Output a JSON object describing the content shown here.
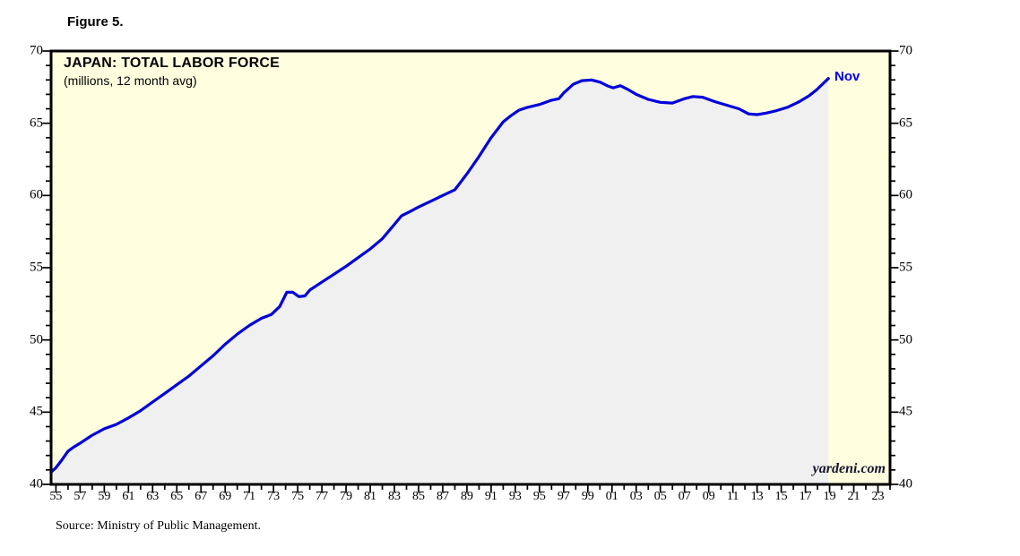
{
  "figure_label": "Figure 5.",
  "chart": {
    "title": "JAPAN: TOTAL LABOR FORCE",
    "subtitle": "(millions, 12 month avg)",
    "end_label": "Nov",
    "watermark": "yardeni.com"
  },
  "source_note": "Source: Ministry of Public Management.",
  "colors": {
    "plot_background": "#ffffe0",
    "area_fill": "#f0f0f0",
    "line": "#0000dd",
    "end_label_blue": "#0000ee",
    "axis": "#000000"
  },
  "chart_data": {
    "type": "area",
    "title": "JAPAN: TOTAL LABOR FORCE",
    "subtitle": "(millions, 12 month avg)",
    "xlabel": "",
    "ylabel": "millions",
    "grid": false,
    "legend_position": "none",
    "xlim": [
      1954.6,
      2024
    ],
    "ylim": [
      40,
      70
    ],
    "y_major_ticks": [
      40,
      45,
      50,
      55,
      60,
      65,
      70
    ],
    "y_minor_tick_step": 1,
    "y_tick_labels": [
      "40",
      "45",
      "50",
      "55",
      "60",
      "65",
      "70"
    ],
    "x_major_tick_start_year": 1955,
    "x_major_tick_step_years": 2,
    "x_tick_labels": [
      "55",
      "57",
      "59",
      "61",
      "63",
      "65",
      "67",
      "69",
      "71",
      "73",
      "75",
      "77",
      "79",
      "81",
      "83",
      "85",
      "87",
      "89",
      "91",
      "93",
      "95",
      "97",
      "99",
      "01",
      "03",
      "05",
      "07",
      "09",
      "11",
      "13",
      "15",
      "17",
      "19",
      "21",
      "23"
    ],
    "series": [
      {
        "name": "Japan total labor force, millions (12-month average)",
        "end_point_label": "Nov",
        "points": [
          [
            1954.6,
            40.85
          ],
          [
            1955,
            41.15
          ],
          [
            1955.5,
            41.7
          ],
          [
            1956,
            42.3
          ],
          [
            1956.5,
            42.6
          ],
          [
            1957,
            42.85
          ],
          [
            1958,
            43.4
          ],
          [
            1959,
            43.85
          ],
          [
            1960,
            44.15
          ],
          [
            1961,
            44.6
          ],
          [
            1962,
            45.1
          ],
          [
            1963,
            45.7
          ],
          [
            1964,
            46.3
          ],
          [
            1965,
            46.9
          ],
          [
            1966,
            47.5
          ],
          [
            1967,
            48.2
          ],
          [
            1968,
            48.9
          ],
          [
            1969,
            49.7
          ],
          [
            1970,
            50.4
          ],
          [
            1971,
            51.0
          ],
          [
            1972,
            51.5
          ],
          [
            1972.8,
            51.75
          ],
          [
            1973.5,
            52.3
          ],
          [
            1974.1,
            53.3
          ],
          [
            1974.6,
            53.3
          ],
          [
            1975.1,
            53.0
          ],
          [
            1975.6,
            53.05
          ],
          [
            1976,
            53.45
          ],
          [
            1977,
            54.0
          ],
          [
            1978,
            54.55
          ],
          [
            1979,
            55.1
          ],
          [
            1980,
            55.7
          ],
          [
            1981,
            56.3
          ],
          [
            1982,
            57.0
          ],
          [
            1983,
            58.0
          ],
          [
            1983.6,
            58.6
          ],
          [
            1984.2,
            58.85
          ],
          [
            1985,
            59.2
          ],
          [
            1986,
            59.6
          ],
          [
            1987,
            60.0
          ],
          [
            1988,
            60.4
          ],
          [
            1989,
            61.5
          ],
          [
            1990,
            62.7
          ],
          [
            1991,
            64.0
          ],
          [
            1992,
            65.1
          ],
          [
            1992.6,
            65.5
          ],
          [
            1993.3,
            65.9
          ],
          [
            1994,
            66.1
          ],
          [
            1995,
            66.3
          ],
          [
            1996,
            66.6
          ],
          [
            1996.6,
            66.7
          ],
          [
            1997,
            67.1
          ],
          [
            1997.8,
            67.7
          ],
          [
            1998.5,
            67.95
          ],
          [
            1999.3,
            68.0
          ],
          [
            2000,
            67.85
          ],
          [
            2000.6,
            67.6
          ],
          [
            2001.1,
            67.45
          ],
          [
            2001.7,
            67.6
          ],
          [
            2002.3,
            67.35
          ],
          [
            2003,
            67.0
          ],
          [
            2004,
            66.65
          ],
          [
            2005,
            66.45
          ],
          [
            2006,
            66.4
          ],
          [
            2007,
            66.7
          ],
          [
            2007.7,
            66.85
          ],
          [
            2008.5,
            66.8
          ],
          [
            2009.5,
            66.5
          ],
          [
            2010.5,
            66.25
          ],
          [
            2011.5,
            66.0
          ],
          [
            2012.3,
            65.65
          ],
          [
            2013,
            65.6
          ],
          [
            2013.7,
            65.7
          ],
          [
            2014.5,
            65.85
          ],
          [
            2015.5,
            66.1
          ],
          [
            2016.5,
            66.5
          ],
          [
            2017.3,
            66.9
          ],
          [
            2017.9,
            67.3
          ],
          [
            2018.4,
            67.7
          ],
          [
            2018.9,
            68.1
          ]
        ]
      }
    ]
  }
}
